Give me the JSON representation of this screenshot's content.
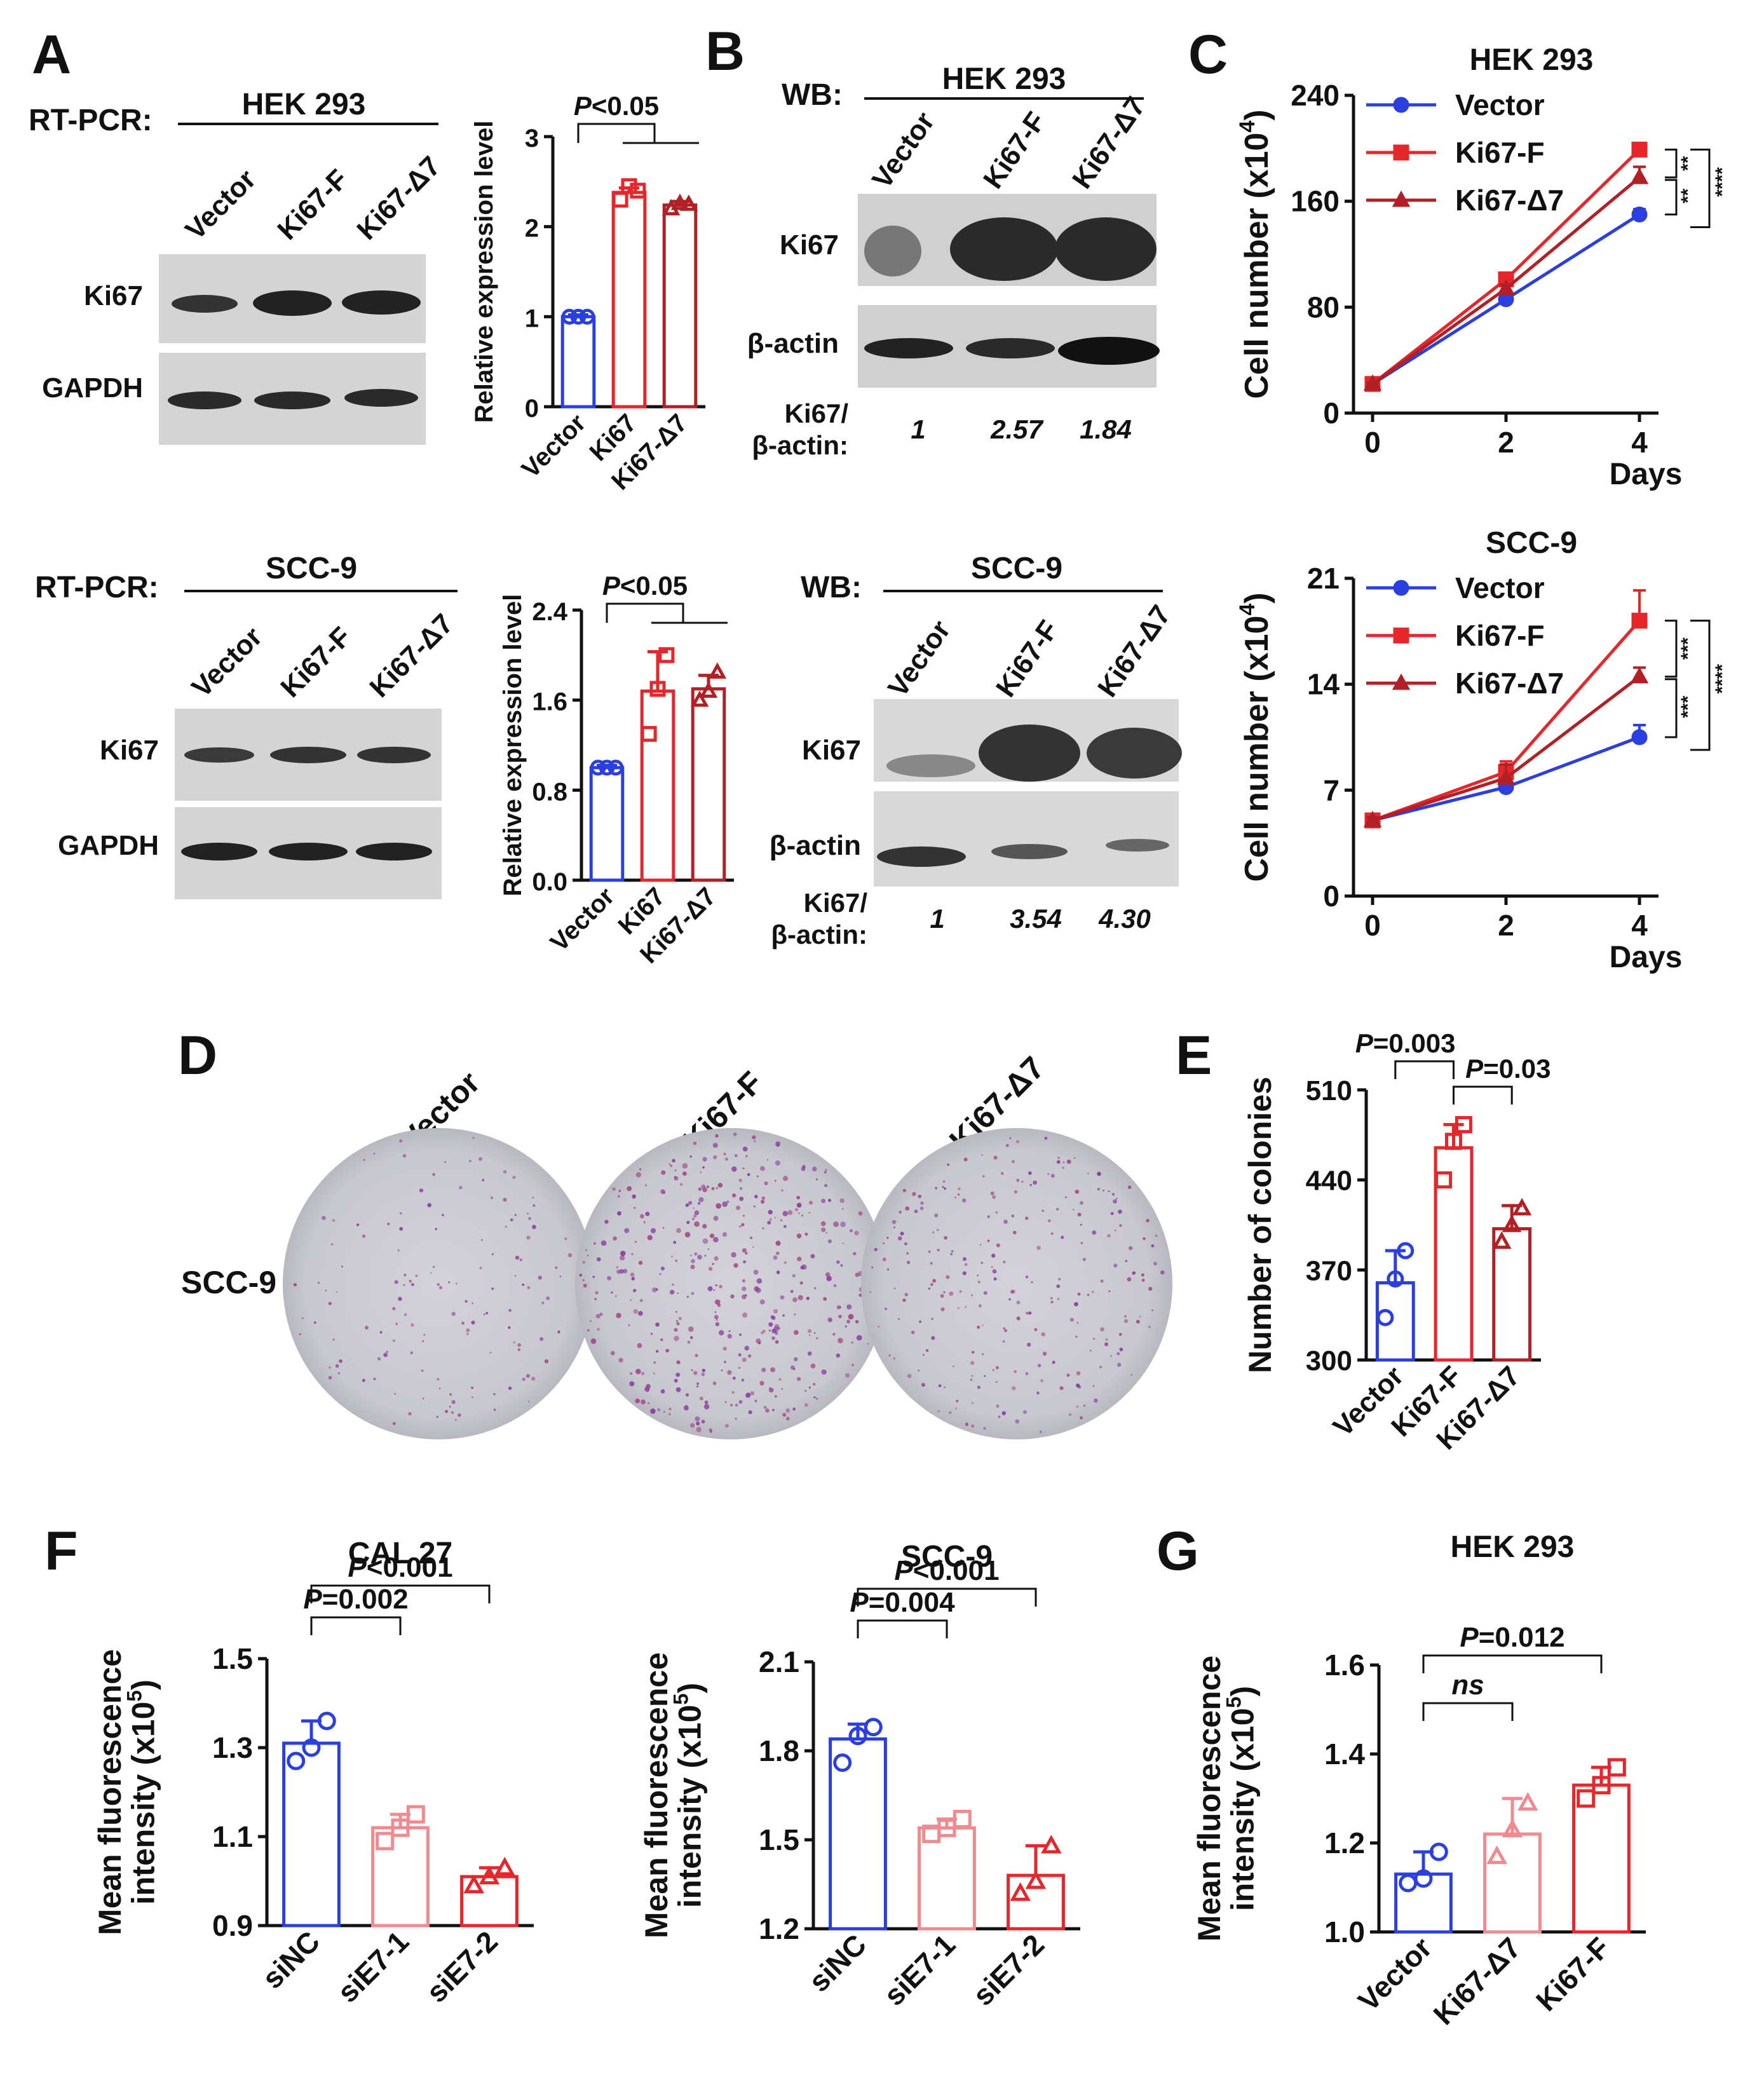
{
  "panels": {
    "A": {
      "label": "A",
      "hek": {
        "method": "RT-PCR:",
        "cell_line": "HEK 293",
        "lanes": [
          "Vector",
          "Ki67-F",
          "Ki67-Δ7"
        ],
        "bands": [
          "Ki67",
          "GAPDH"
        ]
      },
      "scc": {
        "method": "RT-PCR:",
        "cell_line": "SCC-9",
        "lanes": [
          "Vector",
          "Ki67-F",
          "Ki67-Δ7"
        ],
        "bands": [
          "Ki67",
          "GAPDH"
        ]
      }
    },
    "B": {
      "label": "B",
      "hek": {
        "method": "WB:",
        "cell_line": "HEK 293",
        "lanes": [
          "Vector",
          "Ki67-F",
          "Ki67-Δ7"
        ],
        "bands": [
          "Ki67",
          "β-actin"
        ],
        "ratio_label_1": "Ki67/",
        "ratio_label_2": "β-actin:",
        "ratios": [
          "1",
          "2.57",
          "1.84"
        ]
      },
      "scc": {
        "method": "WB:",
        "cell_line": "SCC-9",
        "lanes": [
          "Vector",
          "Ki67-F",
          "Ki67-Δ7"
        ],
        "bands": [
          "Ki67",
          "β-actin"
        ],
        "ratio_label_1": "Ki67/",
        "ratio_label_2": "β-actin:",
        "ratios": [
          "1",
          "3.54",
          "4.30"
        ]
      }
    },
    "C": {
      "label": "C"
    },
    "D": {
      "label": "D",
      "row_label": "SCC-9",
      "columns": [
        "Vector",
        "Ki67-F",
        "Ki67-Δ7"
      ]
    },
    "E": {
      "label": "E"
    },
    "F": {
      "label": "F"
    },
    "G": {
      "label": "G"
    }
  },
  "colors": {
    "blue": "#2b3fe0",
    "red": "#e5262a",
    "darkred": "#b21f24",
    "pink": "#f08a8f",
    "gel_bg": "#d6d6d6",
    "band": "#2a2a2a",
    "dish": "#c9c9d0",
    "colony": "#8a3fa0"
  },
  "chart_data": [
    {
      "id": "A-hek-bar",
      "type": "bar",
      "categories": [
        "Vector",
        "Ki67",
        "Ki67-Δ7"
      ],
      "values": [
        1.0,
        2.38,
        2.24
      ],
      "errors": [
        0.02,
        0.05,
        0.04
      ],
      "points": [
        [
          1.0,
          1.0,
          1.0
        ],
        [
          2.3,
          2.45,
          2.4
        ],
        [
          2.2,
          2.26,
          2.25
        ]
      ],
      "markers": [
        "circle",
        "square",
        "triangle"
      ],
      "colors": [
        "blue",
        "red",
        "darkred"
      ],
      "ylabel": "Relative expression level",
      "ylim": [
        0,
        3
      ],
      "yticks": [
        "0",
        "1",
        "2",
        "3"
      ],
      "annotations": [
        {
          "text": "P<0.05",
          "from": 0,
          "to": [
            1,
            2
          ]
        }
      ]
    },
    {
      "id": "A-scc-bar",
      "type": "bar",
      "categories": [
        "Vector",
        "Ki67",
        "Ki67-Δ7"
      ],
      "values": [
        1.0,
        1.68,
        1.7
      ],
      "errors": [
        0.02,
        0.35,
        0.12
      ],
      "points": [
        [
          1.0,
          1.0,
          1.0
        ],
        [
          1.3,
          1.7,
          2.0
        ],
        [
          1.6,
          1.68,
          1.85
        ]
      ],
      "markers": [
        "circle",
        "square",
        "triangle"
      ],
      "colors": [
        "blue",
        "red",
        "darkred"
      ],
      "ylabel": "Relative expression level",
      "ylim": [
        0,
        2.4
      ],
      "yticks": [
        "0.0",
        "0.8",
        "1.6",
        "2.4"
      ],
      "annotations": [
        {
          "text": "P<0.05",
          "from": 0,
          "to": [
            1,
            2
          ]
        }
      ]
    },
    {
      "id": "C-hek-line",
      "type": "line",
      "title": "HEK 293",
      "x": [
        0,
        2,
        4
      ],
      "series": [
        {
          "name": "Vector",
          "values": [
            22,
            86,
            150
          ],
          "errors": [
            1,
            3,
            4
          ],
          "marker": "circle",
          "color": "blue"
        },
        {
          "name": "Ki67-F",
          "values": [
            22,
            101,
            199
          ],
          "errors": [
            1,
            4,
            5
          ],
          "marker": "square",
          "color": "red"
        },
        {
          "name": "Ki67-Δ7",
          "values": [
            22,
            94,
            178
          ],
          "errors": [
            1,
            3,
            8
          ],
          "marker": "triangle",
          "color": "darkred"
        }
      ],
      "xlabel": "Days",
      "ylabel": "Cell number (x10⁴)",
      "xticks": [
        "0",
        "2",
        "4"
      ],
      "ylim": [
        0,
        240
      ],
      "yticks": [
        "0",
        "80",
        "160",
        "240"
      ],
      "significance": [
        "**",
        "**",
        "****"
      ]
    },
    {
      "id": "C-scc-line",
      "type": "line",
      "title": "SCC-9",
      "x": [
        0,
        2,
        4
      ],
      "series": [
        {
          "name": "Vector",
          "values": [
            5,
            7.2,
            10.5
          ],
          "errors": [
            0.2,
            0.5,
            0.8
          ],
          "marker": "circle",
          "color": "blue"
        },
        {
          "name": "Ki67-F",
          "values": [
            5,
            8.2,
            18.2
          ],
          "errors": [
            0.2,
            0.7,
            2.0
          ],
          "marker": "square",
          "color": "red"
        },
        {
          "name": "Ki67-Δ7",
          "values": [
            5,
            7.8,
            14.5
          ],
          "errors": [
            0.2,
            0.9,
            0.6
          ],
          "marker": "triangle",
          "color": "darkred"
        }
      ],
      "xlabel": "Days",
      "ylabel": "Cell number (x10⁴)",
      "xticks": [
        "0",
        "2",
        "4"
      ],
      "ylim": [
        0,
        21
      ],
      "yticks": [
        "0",
        "7",
        "14",
        "21"
      ],
      "significance": [
        "***",
        "***",
        "****"
      ]
    },
    {
      "id": "E-bar",
      "type": "bar",
      "categories": [
        "Vector",
        "Ki67-F",
        "Ki67-Δ7"
      ],
      "values": [
        360,
        465,
        402
      ],
      "errors": [
        25,
        18,
        18
      ],
      "points": [
        [
          333,
          363,
          385
        ],
        [
          440,
          470,
          483
        ],
        [
          392,
          405,
          418
        ]
      ],
      "markers": [
        "circle",
        "square",
        "triangle"
      ],
      "colors": [
        "blue",
        "red",
        "darkred"
      ],
      "ylabel": "Number of colonies",
      "ylim": [
        300,
        510
      ],
      "yticks": [
        "300",
        "370",
        "440",
        "510"
      ],
      "annotations": [
        {
          "text": "P=0.003",
          "from": 0,
          "to": [
            1
          ]
        },
        {
          "text": "P=0.03",
          "from": 1,
          "to": [
            2
          ]
        }
      ]
    },
    {
      "id": "F-cal-bar",
      "type": "bar",
      "title": "CAL 27",
      "categories": [
        "siNC",
        "siE7-1",
        "siE7-2"
      ],
      "values": [
        1.31,
        1.12,
        1.01
      ],
      "errors": [
        0.05,
        0.03,
        0.02
      ],
      "points": [
        [
          1.27,
          1.3,
          1.36
        ],
        [
          1.09,
          1.12,
          1.15
        ],
        [
          0.99,
          1.01,
          1.03
        ]
      ],
      "markers": [
        "circle",
        "square",
        "triangle"
      ],
      "colors": [
        "blue",
        "pink",
        "red"
      ],
      "ylabel": "Mean fluorescence intensity (x10⁵)",
      "ylim": [
        0.9,
        1.5
      ],
      "yticks": [
        "0.9",
        "1.1",
        "1.3",
        "1.5"
      ],
      "annotations": [
        {
          "text": "P=0.002",
          "from": 0,
          "to": [
            1
          ]
        },
        {
          "text": "P<0.001",
          "from": 0,
          "to": [
            2
          ]
        }
      ]
    },
    {
      "id": "F-scc-bar",
      "type": "bar",
      "title": "SCC-9",
      "categories": [
        "siNC",
        "siE7-1",
        "siE7-2"
      ],
      "values": [
        1.84,
        1.54,
        1.38
      ],
      "errors": [
        0.05,
        0.03,
        0.1
      ],
      "points": [
        [
          1.76,
          1.85,
          1.88
        ],
        [
          1.52,
          1.54,
          1.57
        ],
        [
          1.32,
          1.36,
          1.48
        ]
      ],
      "markers": [
        "circle",
        "square",
        "triangle"
      ],
      "colors": [
        "blue",
        "pink",
        "red"
      ],
      "ylabel": "Mean fluorescence intensity (x10⁵)",
      "ylim": [
        1.2,
        2.1
      ],
      "yticks": [
        "1.2",
        "1.5",
        "1.8",
        "2.1"
      ],
      "annotations": [
        {
          "text": "P=0.004",
          "from": 0,
          "to": [
            1
          ]
        },
        {
          "text": "P<0.001",
          "from": 0,
          "to": [
            2
          ]
        }
      ]
    },
    {
      "id": "G-bar",
      "type": "bar",
      "title": "HEK 293",
      "categories": [
        "Vector",
        "Ki67-Δ7",
        "Ki67-F"
      ],
      "values": [
        1.13,
        1.22,
        1.33
      ],
      "errors": [
        0.05,
        0.08,
        0.04
      ],
      "points": [
        [
          1.11,
          1.12,
          1.18
        ],
        [
          1.17,
          1.23,
          1.29
        ],
        [
          1.3,
          1.33,
          1.37
        ]
      ],
      "markers": [
        "circle",
        "triangle",
        "square"
      ],
      "colors": [
        "blue",
        "pink",
        "red"
      ],
      "ylabel": "Mean fluorescence intensity (x10⁵)",
      "ylim": [
        1.0,
        1.6
      ],
      "yticks": [
        "1.0",
        "1.2",
        "1.4",
        "1.6"
      ],
      "annotations": [
        {
          "text": "ns",
          "from": 0,
          "to": [
            1
          ]
        },
        {
          "text": "P=0.012",
          "from": 0,
          "to": [
            2
          ]
        }
      ]
    }
  ]
}
